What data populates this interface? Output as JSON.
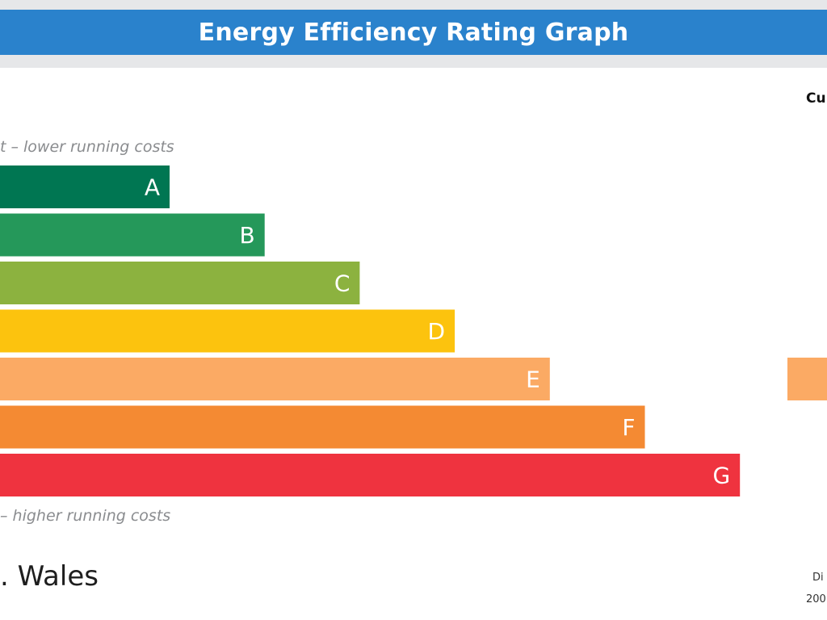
{
  "header": {
    "title": "Energy Efficiency Rating Graph",
    "title_bar_color": "#2a82cc"
  },
  "chart_data": {
    "type": "bar",
    "title": "Energy Efficiency Rating Graph",
    "top_caption": "t – lower running costs",
    "bottom_caption": "– higher running costs",
    "categories": [
      "A",
      "B",
      "C",
      "D",
      "E",
      "F",
      "G"
    ],
    "values": [
      1,
      2,
      3,
      4,
      5,
      6,
      7
    ],
    "colors": [
      "#007652",
      "#25985a",
      "#8cb23f",
      "#fcc30e",
      "#fbaa64",
      "#f48a33",
      "#ef333f"
    ],
    "current": {
      "header": "Cu",
      "band": "E",
      "color": "#fbaa64"
    },
    "region": ". Wales",
    "footer": [
      "Di",
      "200"
    ]
  }
}
